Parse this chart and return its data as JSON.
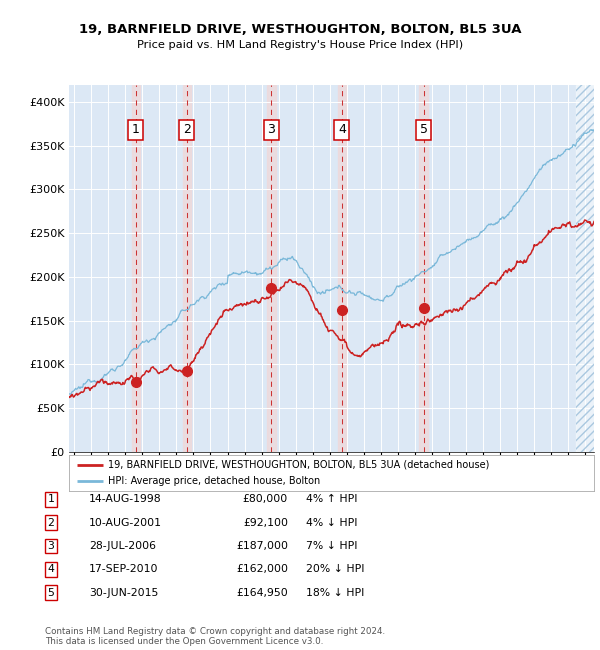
{
  "title1": "19, BARNFIELD DRIVE, WESTHOUGHTON, BOLTON, BL5 3UA",
  "title2": "Price paid vs. HM Land Registry's House Price Index (HPI)",
  "legend_house": "19, BARNFIELD DRIVE, WESTHOUGHTON, BOLTON, BL5 3UA (detached house)",
  "legend_hpi": "HPI: Average price, detached house, Bolton",
  "footer1": "Contains HM Land Registry data © Crown copyright and database right 2024.",
  "footer2": "This data is licensed under the Open Government Licence v3.0.",
  "sales": [
    {
      "num": 1,
      "date": "14-AUG-1998",
      "price": 80000,
      "pct": "4%",
      "dir": "↑",
      "x_year": 1998.62
    },
    {
      "num": 2,
      "date": "10-AUG-2001",
      "price": 92100,
      "pct": "4%",
      "dir": "↓",
      "x_year": 2001.61
    },
    {
      "num": 3,
      "date": "28-JUL-2006",
      "price": 187000,
      "pct": "7%",
      "dir": "↓",
      "x_year": 2006.57
    },
    {
      "num": 4,
      "date": "17-SEP-2010",
      "price": 162000,
      "pct": "20%",
      "dir": "↓",
      "x_year": 2010.71
    },
    {
      "num": 5,
      "date": "30-JUN-2015",
      "price": 164950,
      "pct": "18%",
      "dir": "↓",
      "x_year": 2015.5
    }
  ],
  "table_rows": [
    [
      1,
      "14-AUG-1998",
      "£80,000",
      "4% ↑ HPI"
    ],
    [
      2,
      "10-AUG-2001",
      "£92,100",
      "4% ↓ HPI"
    ],
    [
      3,
      "28-JUL-2006",
      "£187,000",
      "7% ↓ HPI"
    ],
    [
      4,
      "17-SEP-2010",
      "£162,000",
      "20% ↓ HPI"
    ],
    [
      5,
      "30-JUN-2015",
      "£164,950",
      "18% ↓ HPI"
    ]
  ],
  "hpi_color": "#7ab8d9",
  "house_color": "#cc2222",
  "bg_color": "#dce8f5",
  "grid_color": "#ffffff",
  "ylim": [
    0,
    420000
  ],
  "xlim_start": 1994.7,
  "xlim_end": 2025.5,
  "hatch_start": 2024.42
}
